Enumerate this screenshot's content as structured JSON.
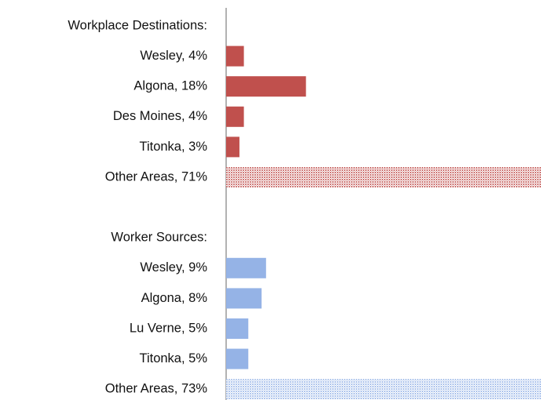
{
  "chart_data": {
    "type": "bar",
    "orientation": "horizontal",
    "xlim": [
      0,
      71
    ],
    "groups": [
      {
        "name": "Workplace Destinations:",
        "color": "#c0504d",
        "categories": [
          "Wesley, 4%",
          "Algona, 18%",
          "Des Moines, 4%",
          "Titonka, 3%",
          "Other Areas, 71%"
        ],
        "values": [
          4,
          18,
          4,
          3,
          71
        ],
        "hatched": [
          false,
          false,
          false,
          false,
          true
        ]
      },
      {
        "name": "Worker Sources:",
        "color": "#95b3e6",
        "categories": [
          "Wesley, 9%",
          "Algona, 8%",
          "Lu Verne, 5%",
          "Titonka, 5%",
          "Other Areas, 73%"
        ],
        "values": [
          9,
          8,
          5,
          5,
          73
        ],
        "hatched": [
          false,
          false,
          false,
          false,
          true
        ]
      }
    ]
  }
}
